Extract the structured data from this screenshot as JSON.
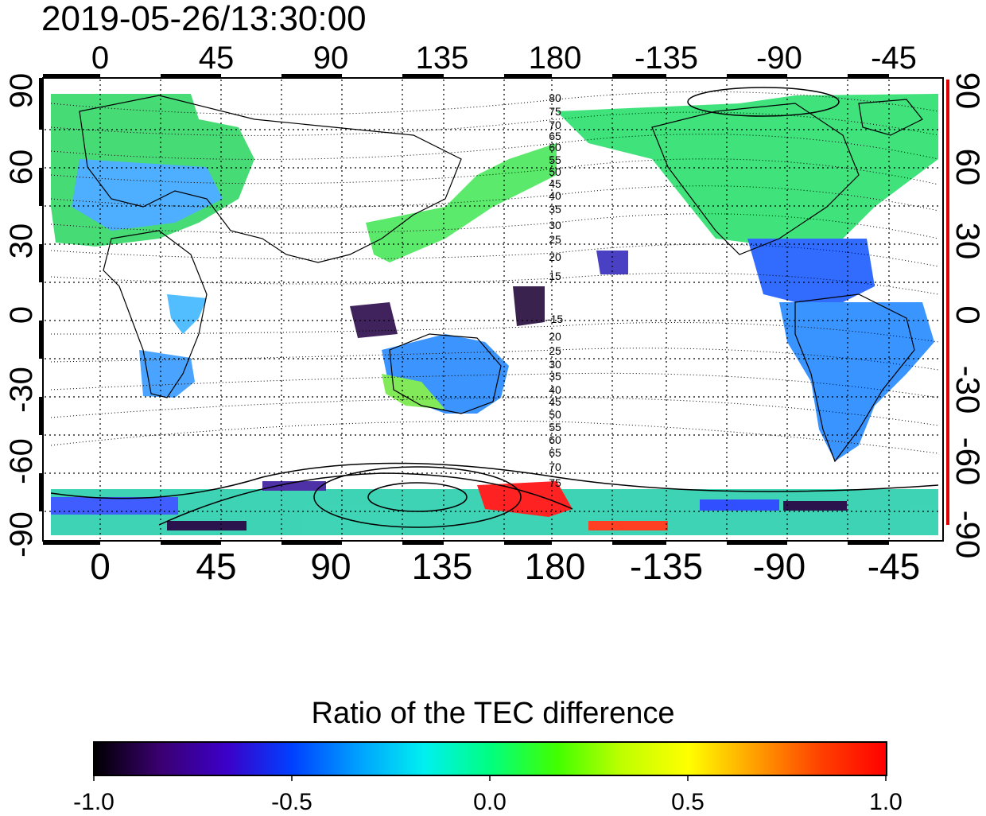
{
  "header": {
    "timestamp": "2019-05-26/13:30:00"
  },
  "map": {
    "projection": "equirectangular",
    "lon_ticks_top": [
      "0",
      "45",
      "90",
      "135",
      "180",
      "-135",
      "-90",
      "-45"
    ],
    "lon_ticks_bottom": [
      "0",
      "45",
      "90",
      "135",
      "180",
      "-135",
      "-90",
      "-45"
    ],
    "lat_ticks_left": [
      "90",
      "60",
      "30",
      "0",
      "-30",
      "-60",
      "-90"
    ],
    "lat_ticks_right": [
      "90",
      "60",
      "30",
      "0",
      "-30",
      "-60",
      "-90"
    ],
    "contour_labels_north": [
      "80",
      "75",
      "70",
      "65",
      "60",
      "55",
      "50",
      "45",
      "40",
      "35",
      "30",
      "25",
      "20",
      "15"
    ],
    "contour_labels_south": [
      "-15",
      "20",
      "25",
      "30",
      "35",
      "40",
      "45",
      "50",
      "55",
      "60",
      "65",
      "70",
      "75"
    ],
    "grid": true,
    "lon_range": [
      -20,
      340
    ],
    "lat_range": [
      -90,
      90
    ]
  },
  "colorbar": {
    "title": "Ratio of the TEC difference",
    "tick_labels": [
      "-1.0",
      "-0.5",
      "0.0",
      "0.5",
      "1.0"
    ],
    "range": [
      -1.0,
      1.0
    ],
    "colors": [
      "#000000",
      "#3a0070",
      "#3c00c8",
      "#0040ff",
      "#00a0ff",
      "#00f0f0",
      "#00ff80",
      "#40ff00",
      "#c0ff00",
      "#ffff00",
      "#ffa000",
      "#ff4000",
      "#ff0000"
    ]
  }
}
